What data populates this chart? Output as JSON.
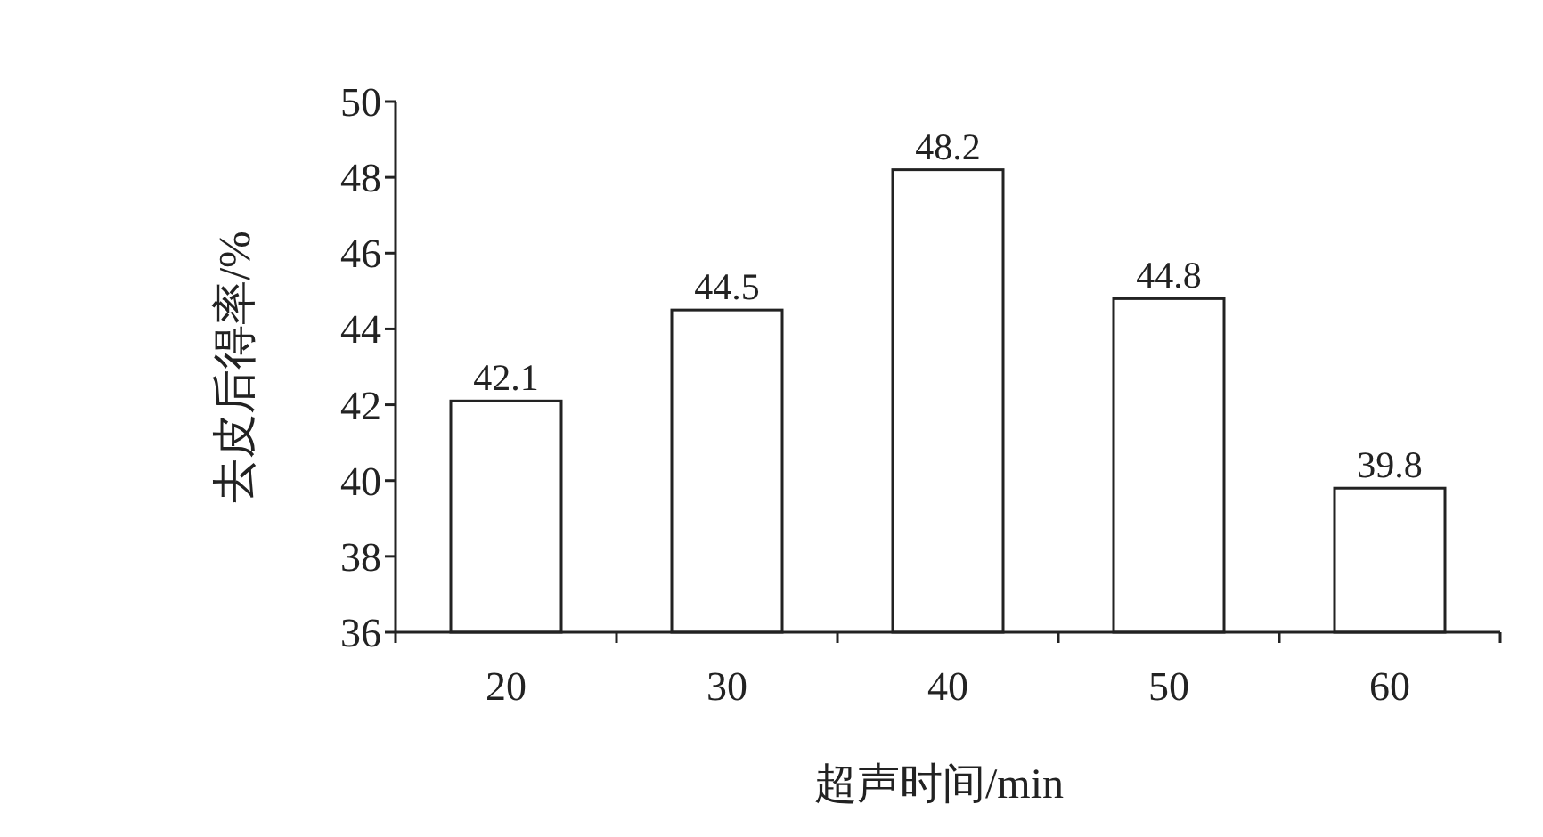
{
  "chart_data": {
    "type": "bar",
    "xlabel": "超声时间/min",
    "ylabel": "去皮后得率/%",
    "categories": [
      "20",
      "30",
      "40",
      "50",
      "60"
    ],
    "values": [
      42.1,
      44.5,
      48.2,
      44.8,
      39.8
    ],
    "color": "#ffffff",
    "ylim": [
      36,
      50
    ],
    "yticks": [
      36,
      38,
      40,
      42,
      44,
      46,
      48,
      50
    ],
    "data_labels": true
  }
}
